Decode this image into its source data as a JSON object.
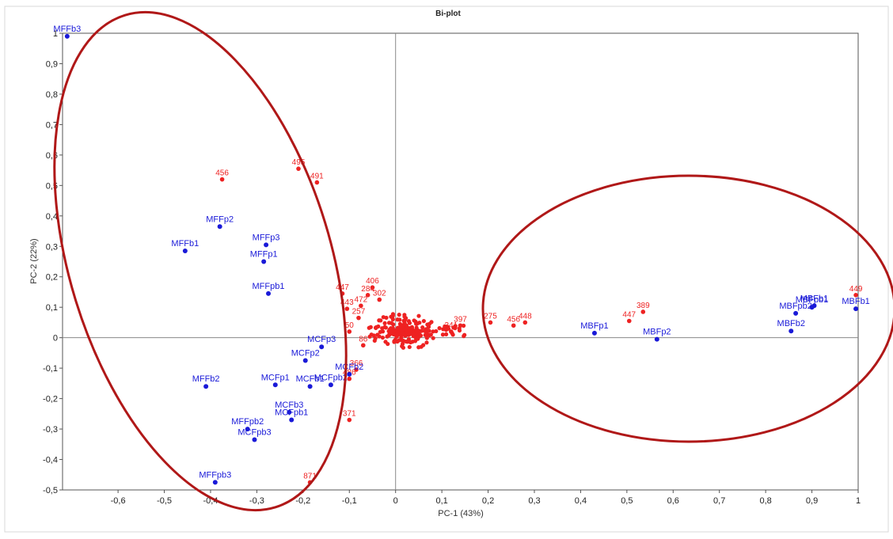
{
  "chart_data": {
    "type": "scatter",
    "title": "Bi-plot",
    "xlabel": "PC-1 (43%)",
    "ylabel": "PC-2 (22%)",
    "xlim": [
      -0.72,
      1.0
    ],
    "ylim": [
      -0.5,
      1.0
    ],
    "x_ticks": [
      {
        "v": -0.6,
        "t": "-0,6"
      },
      {
        "v": -0.5,
        "t": "-0,5"
      },
      {
        "v": -0.4,
        "t": "-0,4"
      },
      {
        "v": -0.3,
        "t": "-0,3"
      },
      {
        "v": -0.2,
        "t": "-0,2"
      },
      {
        "v": -0.1,
        "t": "-0,1"
      },
      {
        "v": 0,
        "t": "0"
      },
      {
        "v": 0.1,
        "t": "0,1"
      },
      {
        "v": 0.2,
        "t": "0,2"
      },
      {
        "v": 0.3,
        "t": "0,3"
      },
      {
        "v": 0.4,
        "t": "0,4"
      },
      {
        "v": 0.5,
        "t": "0,5"
      },
      {
        "v": 0.6,
        "t": "0,6"
      },
      {
        "v": 0.7,
        "t": "0,7"
      },
      {
        "v": 0.8,
        "t": "0,8"
      },
      {
        "v": 0.9,
        "t": "0,9"
      },
      {
        "v": 1.0,
        "t": "1"
      }
    ],
    "y_ticks": [
      {
        "v": 1.0,
        "t": "1"
      },
      {
        "v": 0.9,
        "t": "0,9"
      },
      {
        "v": 0.8,
        "t": "0,8"
      },
      {
        "v": 0.7,
        "t": "0,7"
      },
      {
        "v": 0.6,
        "t": "0,6"
      },
      {
        "v": 0.5,
        "t": "0,5"
      },
      {
        "v": 0.4,
        "t": "0,4"
      },
      {
        "v": 0.3,
        "t": "0,3"
      },
      {
        "v": 0.2,
        "t": "0,2"
      },
      {
        "v": 0.1,
        "t": "0,1"
      },
      {
        "v": 0,
        "t": "0"
      },
      {
        "v": -0.1,
        "t": "-0,1"
      },
      {
        "v": -0.2,
        "t": "-0,2"
      },
      {
        "v": -0.3,
        "t": "-0,3"
      },
      {
        "v": -0.4,
        "t": "-0,4"
      },
      {
        "v": -0.5,
        "t": "-0,5"
      }
    ],
    "grid": false,
    "colors": {
      "samples": "#1a1ad8",
      "variables": "#ee2222",
      "ellipse": "#b01818",
      "axis": "#888888"
    },
    "samples": [
      {
        "label": "MFFb3",
        "x": -0.71,
        "y": 0.99
      },
      {
        "label": "MFFp2",
        "x": -0.38,
        "y": 0.365
      },
      {
        "label": "MFFb1",
        "x": -0.455,
        "y": 0.285
      },
      {
        "label": "MFFp3",
        "x": -0.28,
        "y": 0.305
      },
      {
        "label": "MFFp1",
        "x": -0.285,
        "y": 0.25
      },
      {
        "label": "MFFpb1",
        "x": -0.275,
        "y": 0.145
      },
      {
        "label": "MCFp3",
        "x": -0.16,
        "y": -0.03
      },
      {
        "label": "MCFp2",
        "x": -0.195,
        "y": -0.075
      },
      {
        "label": "MFFb2",
        "x": -0.41,
        "y": -0.16
      },
      {
        "label": "MCFp1",
        "x": -0.26,
        "y": -0.155
      },
      {
        "label": "MCFb1",
        "x": -0.185,
        "y": -0.16
      },
      {
        "label": "MCFpb2",
        "x": -0.14,
        "y": -0.155
      },
      {
        "label": "MCFb2",
        "x": -0.1,
        "y": -0.12
      },
      {
        "label": "MCFb3",
        "x": -0.23,
        "y": -0.245
      },
      {
        "label": "MCFpb1",
        "x": -0.225,
        "y": -0.27
      },
      {
        "label": "MFFpb2",
        "x": -0.32,
        "y": -0.3
      },
      {
        "label": "MCFpb3",
        "x": -0.305,
        "y": -0.335
      },
      {
        "label": "MFFpb3",
        "x": -0.39,
        "y": -0.475
      },
      {
        "label": "MBFp1",
        "x": 0.43,
        "y": 0.015
      },
      {
        "label": "MBFp2",
        "x": 0.565,
        "y": -0.005
      },
      {
        "label": "MBFb2",
        "x": 0.855,
        "y": 0.022
      },
      {
        "label": "MBFpb2",
        "x": 0.865,
        "y": 0.08
      },
      {
        "label": "MBFpb1",
        "x": 0.9,
        "y": 0.1
      },
      {
        "label": "MBFb1",
        "x": 0.905,
        "y": 0.105
      },
      {
        "label": "MBFb1",
        "x": 0.995,
        "y": 0.095
      }
    ],
    "variables": [
      {
        "label": "456",
        "x": -0.375,
        "y": 0.52
      },
      {
        "label": "495",
        "x": -0.21,
        "y": 0.555
      },
      {
        "label": "491",
        "x": -0.17,
        "y": 0.51
      },
      {
        "label": "406",
        "x": -0.05,
        "y": 0.165
      },
      {
        "label": "284",
        "x": -0.06,
        "y": 0.14
      },
      {
        "label": "302",
        "x": -0.035,
        "y": 0.125
      },
      {
        "label": "472",
        "x": -0.075,
        "y": 0.105
      },
      {
        "label": "447",
        "x": -0.115,
        "y": 0.145
      },
      {
        "label": "443",
        "x": -0.105,
        "y": 0.095
      },
      {
        "label": "257",
        "x": -0.08,
        "y": 0.065
      },
      {
        "label": "50",
        "x": -0.1,
        "y": 0.02
      },
      {
        "label": "86",
        "x": -0.07,
        "y": -0.025
      },
      {
        "label": "366",
        "x": -0.085,
        "y": -0.105
      },
      {
        "label": "486",
        "x": -0.1,
        "y": -0.135
      },
      {
        "label": "371",
        "x": -0.1,
        "y": -0.27
      },
      {
        "label": "871",
        "x": -0.185,
        "y": -0.475
      },
      {
        "label": "397",
        "x": 0.14,
        "y": 0.04
      },
      {
        "label": "341",
        "x": 0.12,
        "y": 0.02
      },
      {
        "label": "275",
        "x": 0.205,
        "y": 0.05
      },
      {
        "label": "456",
        "x": 0.255,
        "y": 0.04
      },
      {
        "label": "448",
        "x": 0.28,
        "y": 0.05
      },
      {
        "label": "447",
        "x": 0.505,
        "y": 0.055
      },
      {
        "label": "389",
        "x": 0.535,
        "y": 0.085
      },
      {
        "label": "449",
        "x": 0.995,
        "y": 0.14
      }
    ]
  }
}
